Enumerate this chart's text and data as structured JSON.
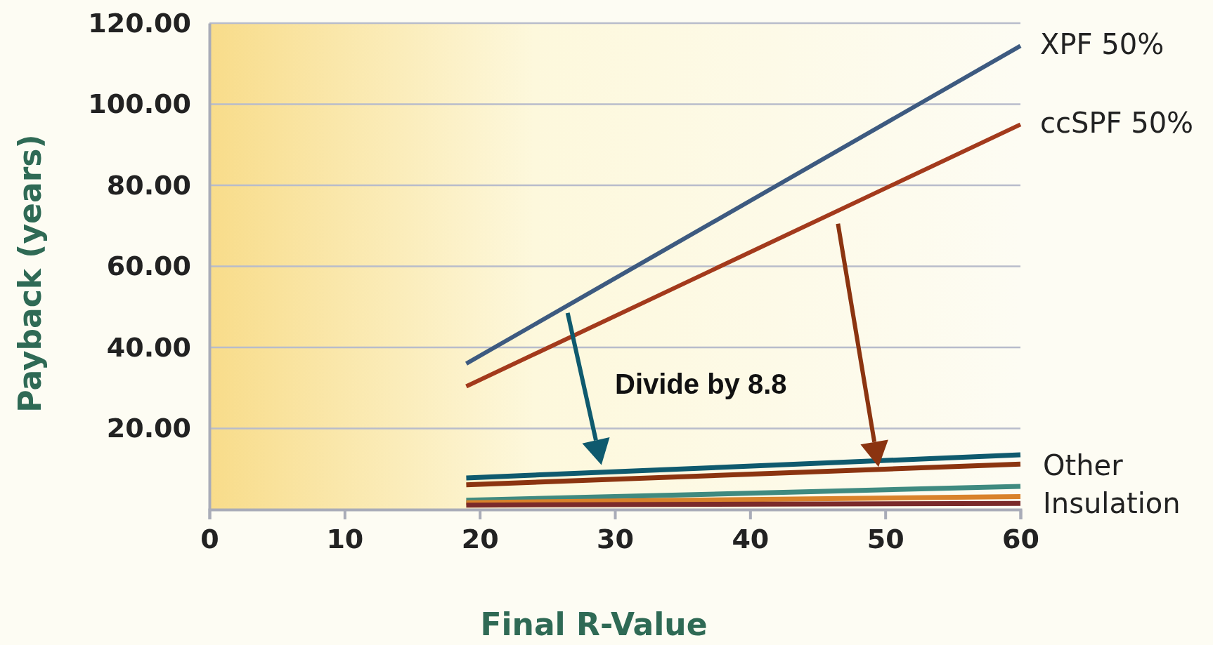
{
  "chart_data": {
    "type": "line",
    "xlabel": "Final R-Value",
    "ylabel": "Payback (years)",
    "xlim": [
      0,
      60
    ],
    "ylim": [
      0,
      120
    ],
    "xticks": [
      0,
      10,
      20,
      30,
      40,
      50,
      60
    ],
    "yticks": [
      {
        "value": 20,
        "label": "20.00"
      },
      {
        "value": 40,
        "label": "40.00"
      },
      {
        "value": 60,
        "label": "60.00"
      },
      {
        "value": 80,
        "label": "80.00"
      },
      {
        "value": 100,
        "label": "100.00"
      },
      {
        "value": 120,
        "label": "120.00"
      }
    ],
    "grid": "y",
    "marker": "none",
    "line_style": "solid",
    "x": [
      19,
      60
    ],
    "series": [
      {
        "name": "XPF 50%",
        "color": "#3d5a80",
        "values": [
          36,
          114.4
        ]
      },
      {
        "name": "ccSPF 50%",
        "color": "#a33a1c",
        "values": [
          30.4,
          95
        ]
      },
      {
        "color": "#0f5a6e",
        "values": [
          7.8,
          13.5
        ]
      },
      {
        "color": "#8b3410",
        "values": [
          6.1,
          11.2
        ]
      },
      {
        "color": "#3f8a80",
        "values": [
          2.3,
          5.7
        ]
      },
      {
        "color": "#d9822b",
        "values": [
          1.7,
          3.2
        ]
      },
      {
        "color": "#7a2a2a",
        "values": [
          1.1,
          1.5
        ]
      }
    ],
    "annotations": [
      "Divide by 8.8",
      "Other Insulation"
    ]
  }
}
